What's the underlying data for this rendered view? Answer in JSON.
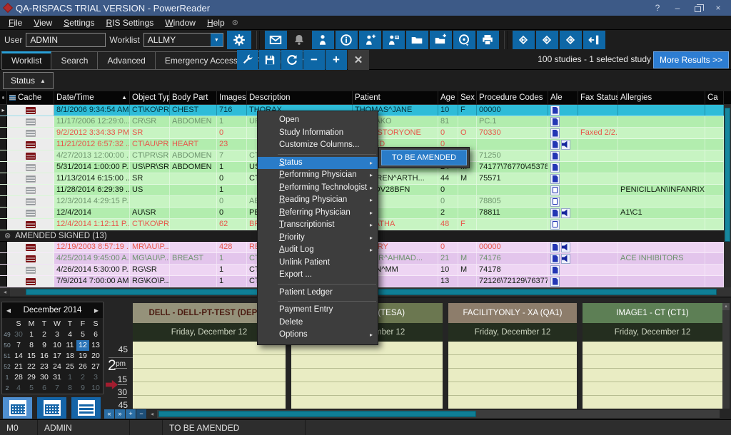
{
  "window": {
    "title": "QA-RISPACS TRIAL VERSION - PowerReader",
    "controls": {
      "help": "?",
      "minimize": "–",
      "close": "×"
    }
  },
  "menubar": [
    "File",
    "View",
    "Settings",
    "RIS Settings",
    "Window",
    "Help"
  ],
  "toolbar": {
    "user_label": "User",
    "user_value": "ADMIN",
    "worklist_label": "Worklist",
    "worklist_value": "ALLMY"
  },
  "tabs": [
    "Worklist",
    "Search",
    "Advanced",
    "Emergency Access",
    "Patient Search"
  ],
  "worklist_bar": {
    "summary": "100 studies - 1 selected study",
    "more_button": "More Results >>",
    "group_button": "Status",
    "group_sort_arrow": "▲"
  },
  "table": {
    "columns": [
      "",
      "Cache",
      "Date/Time",
      "Object Type",
      "Body Part",
      "Images",
      "Description",
      "Patient",
      "Age",
      "Sex",
      "Procedure Codes",
      "Ale",
      "Fax Status",
      "Allergies",
      "Ca"
    ],
    "sort_column": "Date/Time",
    "rows": [
      {
        "cache": "red",
        "dt": "8/1/2006 9:34:54 AM",
        "type": "CT\\KO\\PR...",
        "body": "CHEST",
        "img": "716",
        "desc": "THORAX",
        "patient": "THOMAS^JANE",
        "age": "10",
        "sex": "F",
        "codes": "00000",
        "alert": "doc",
        "fax": "",
        "allergies": "",
        "tone": "selected"
      },
      {
        "cache": "gray",
        "dt": "11/17/2006 12:29:0...",
        "type": "CR\\SR",
        "body": "ABDOMEN",
        "img": "1",
        "desc": "UP",
        "patient": "^HANAKO",
        "age": "81",
        "sex": "",
        "codes": "PC.1",
        "alert": "doc",
        "fax": "",
        "allergies": "",
        "tone": "muted"
      },
      {
        "cache": "gray",
        "dt": "9/2/2012 3:34:33 PM",
        "type": "SR",
        "body": "",
        "img": "0",
        "desc": "",
        "patient": "NE^HISTORYONE",
        "age": "0",
        "sex": "O",
        "codes": "70330",
        "alert": "doc",
        "fax": "Faxed 2/2...",
        "allergies": "",
        "tone": "red"
      },
      {
        "cache": "red",
        "dt": "11/21/2012 6:57:32 ...",
        "type": "CT\\AU\\PR...",
        "body": "HEART",
        "img": "23",
        "desc": "",
        "patient": "SIGNED",
        "age": "0",
        "sex": "",
        "codes": "",
        "alert": "doc-spk",
        "fax": "",
        "allergies": "",
        "tone": "red"
      },
      {
        "cache": "red",
        "dt": "4/27/2013 12:00:00 ...",
        "type": "CT\\PR\\SR",
        "body": "ABDOMEN",
        "img": "7",
        "desc": "CT",
        "patient": "",
        "age": "",
        "sex": "",
        "codes": "71250",
        "alert": "doc",
        "fax": "",
        "allergies": "",
        "tone": "muted"
      },
      {
        "cache": "gray",
        "dt": "5/31/2014 1:00:00 P...",
        "type": "US\\PR\\SR",
        "body": "ABDOMEN",
        "img": "1",
        "desc": "US",
        "patient": "ST",
        "age": "24",
        "sex": "M",
        "codes": "74177\\76770\\45378",
        "alert": "doc",
        "fax": "",
        "allergies": "",
        "tone": "normal"
      },
      {
        "cache": "gray",
        "dt": "11/13/2014 6:15:00 ...",
        "type": "SR",
        "body": "",
        "img": "0",
        "desc": "CT",
        "patient": "^WARREN^ARTH...",
        "age": "44",
        "sex": "M",
        "codes": "75571",
        "alert": "doc",
        "fax": "",
        "allergies": "",
        "tone": "normal"
      },
      {
        "cache": "gray",
        "dt": "11/28/2014 6:29:39 ...",
        "type": "US",
        "body": "",
        "img": "1",
        "desc": "",
        "patient": "LN^NOV28BFN",
        "age": "0",
        "sex": "",
        "codes": "",
        "alert": "doc-o",
        "fax": "",
        "allergies": "PENICILLAN\\INFANRIX ...",
        "tone": "normal"
      },
      {
        "cache": "gray",
        "dt": "12/3/2014 4:29:15 P...",
        "type": "",
        "body": "",
        "img": "0",
        "desc": "AB",
        "patient": "PORT",
        "age": "0",
        "sex": "",
        "codes": "78805",
        "alert": "doc-o",
        "fax": "",
        "allergies": "",
        "tone": "muted"
      },
      {
        "cache": "gray",
        "dt": "12/4/2014",
        "type": "AU\\SR",
        "body": "",
        "img": "0",
        "desc": "PE",
        "patient": "ST",
        "age": "2",
        "sex": "",
        "codes": "78811",
        "alert": "doc-spk",
        "fax": "",
        "allergies": "A1\\C1",
        "tone": "normal"
      },
      {
        "cache": "red",
        "dt": "12/4/2014 1:12:11 P...",
        "type": "CT\\KO\\PR",
        "body": "",
        "img": "62",
        "desc": "BR",
        "patient": "^SARATHA",
        "age": "48",
        "sex": "F",
        "codes": "",
        "alert": "doc-o",
        "fax": "",
        "allergies": "",
        "tone": "red"
      }
    ],
    "group_header": "AMENDED SIGNED (13)",
    "amended_rows": [
      {
        "cache": "red",
        "dt": "12/19/2003 8:57:19 ...",
        "type": "MR\\AU\\P...",
        "body": "",
        "img": "428",
        "desc": "RE",
        "patient": "KHOURY",
        "age": "0",
        "sex": "",
        "codes": "00000",
        "alert": "doc-spk",
        "fax": "",
        "allergies": "",
        "tone": "red"
      },
      {
        "cache": "red",
        "dt": "4/25/2014 9:45:00 A...",
        "type": "MG\\AU\\P...",
        "body": "BREAST",
        "img": "1",
        "desc": "CT",
        "patient": "SHABIR^AHMAD...",
        "age": "21",
        "sex": "M",
        "codes": "74176",
        "alert": "doc-spk",
        "fax": "",
        "allergies": "ACE INHIBITORS",
        "tone": "muted"
      },
      {
        "cache": "gray",
        "dt": "4/26/2014 5:30:00 P...",
        "type": "RG\\SR",
        "body": "",
        "img": "1",
        "desc": "CT",
        "patient": "APRFN^MM",
        "age": "10",
        "sex": "M",
        "codes": "74178",
        "alert": "doc",
        "fax": "",
        "allergies": "",
        "tone": "normal"
      },
      {
        "cache": "red",
        "dt": "7/9/2014 7:00:00 AM",
        "type": "RG\\KO\\P...",
        "body": "",
        "img": "1",
        "desc": "CT",
        "patient": "ST",
        "age": "13",
        "sex": "",
        "codes": "72126\\72129\\76377",
        "alert": "doc",
        "fax": "",
        "allergies": "",
        "tone": "normal"
      }
    ]
  },
  "context_menu": {
    "items": [
      {
        "label": "Open"
      },
      {
        "label": "Study Information"
      },
      {
        "label": "Customize Columns..."
      },
      {
        "separator": true
      },
      {
        "label": "Status",
        "submenu": true,
        "highlighted": true,
        "mnemonic": true
      },
      {
        "label": "Performing Physician",
        "submenu": true,
        "mnemonic": true
      },
      {
        "label": "Performing Technologist",
        "submenu": true,
        "mnemonic": true
      },
      {
        "label": "Reading Physician",
        "submenu": true,
        "mnemonic": true
      },
      {
        "label": "Referring Physician",
        "submenu": true,
        "mnemonic": true
      },
      {
        "label": "Transcriptionist",
        "submenu": true,
        "mnemonic": true
      },
      {
        "label": "Priority",
        "submenu": true,
        "mnemonic": true
      },
      {
        "label": "Audit Log",
        "submenu": true,
        "mnemonic": true
      },
      {
        "label": "Unlink Patient"
      },
      {
        "label": "Export ..."
      },
      {
        "separator": true
      },
      {
        "label": "Patient Ledger"
      },
      {
        "separator": true
      },
      {
        "label": "Payment Entry"
      },
      {
        "label": "Delete"
      },
      {
        "label": "Options",
        "submenu": true
      }
    ],
    "submenu_item": "TO BE AMENDED"
  },
  "calendar": {
    "title": "December 2014",
    "prev": "◀",
    "next": "▶",
    "dows": [
      "S",
      "M",
      "T",
      "W",
      "T",
      "F",
      "S"
    ],
    "weeks": [
      {
        "num": "49",
        "days": [
          "30o",
          "1",
          "2",
          "3",
          "4",
          "5",
          "6"
        ]
      },
      {
        "num": "50",
        "days": [
          "7",
          "8",
          "9",
          "10",
          "11",
          "12s",
          "13"
        ]
      },
      {
        "num": "51",
        "days": [
          "14",
          "15",
          "16",
          "17",
          "18",
          "19",
          "20"
        ]
      },
      {
        "num": "52",
        "days": [
          "21",
          "22",
          "23",
          "24",
          "25",
          "26",
          "27"
        ]
      },
      {
        "num": "1",
        "days": [
          "28",
          "29",
          "30",
          "31",
          "1o",
          "2o",
          "3o"
        ]
      },
      {
        "num": "2",
        "days": [
          "4o",
          "5o",
          "6o",
          "7o",
          "8o",
          "9o",
          "10o"
        ]
      }
    ]
  },
  "scheduler": {
    "columns": [
      {
        "name": "DELL - DELL-PT-TEST (DEPT1)",
        "date": "Friday, December 12",
        "theme": "tan"
      },
      {
        "name": "RESOURCE (TESA)",
        "date": "Friday, December 12",
        "theme": "olivegreen"
      },
      {
        "name": "FACILITYONLY - XA (QA1)",
        "date": "Friday, December 12",
        "theme": "taupe"
      },
      {
        "name": "IMAGE1 - CT (CT1)",
        "date": "Friday, December 12",
        "theme": "green"
      }
    ],
    "time_gutter": {
      "tick_before": "45",
      "hour": "2",
      "meridiem": "pm",
      "tick_15": "15",
      "tick_30": "30",
      "tick_45": "45"
    }
  },
  "statusbar": [
    "M0",
    "ADMIN",
    "",
    "TO BE AMENDED"
  ],
  "colors": {
    "titlebar": "#3d5a87",
    "accent_blue": "#0e67a6",
    "selection_cyan": "#2ebcd8",
    "row_green_a": "#c7f4c2",
    "row_green_b": "#b2edae",
    "row_pink_a": "#eed5f3",
    "row_pink_b": "#e3c5ec",
    "alert_red": "#e8554a",
    "muted_green": "#6d936d",
    "menu_highlight": "#2a7cc8"
  }
}
